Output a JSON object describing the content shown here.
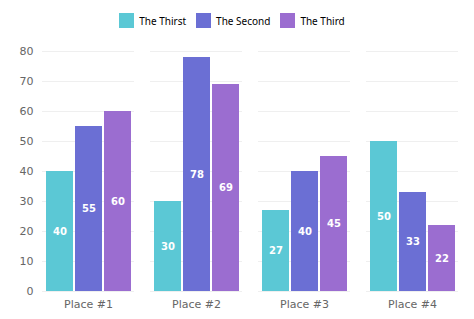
{
  "chart_data": {
    "type": "bar",
    "categories": [
      "Place #1",
      "Place #2",
      "Place #3",
      "Place #4"
    ],
    "series": [
      {
        "name": "The Thirst",
        "color": "#5BC8D5",
        "values": [
          40,
          30,
          27,
          50
        ]
      },
      {
        "name": "The Second",
        "color": "#6B6FD4",
        "values": [
          55,
          78,
          40,
          33
        ]
      },
      {
        "name": "The Third",
        "color": "#9B6DD0",
        "values": [
          60,
          69,
          45,
          22
        ]
      }
    ],
    "ylim": [
      0,
      80
    ],
    "yticks": [
      0,
      10,
      20,
      30,
      40,
      50,
      60,
      70,
      80
    ],
    "grid": true,
    "data_labels": true,
    "legend": "top"
  }
}
